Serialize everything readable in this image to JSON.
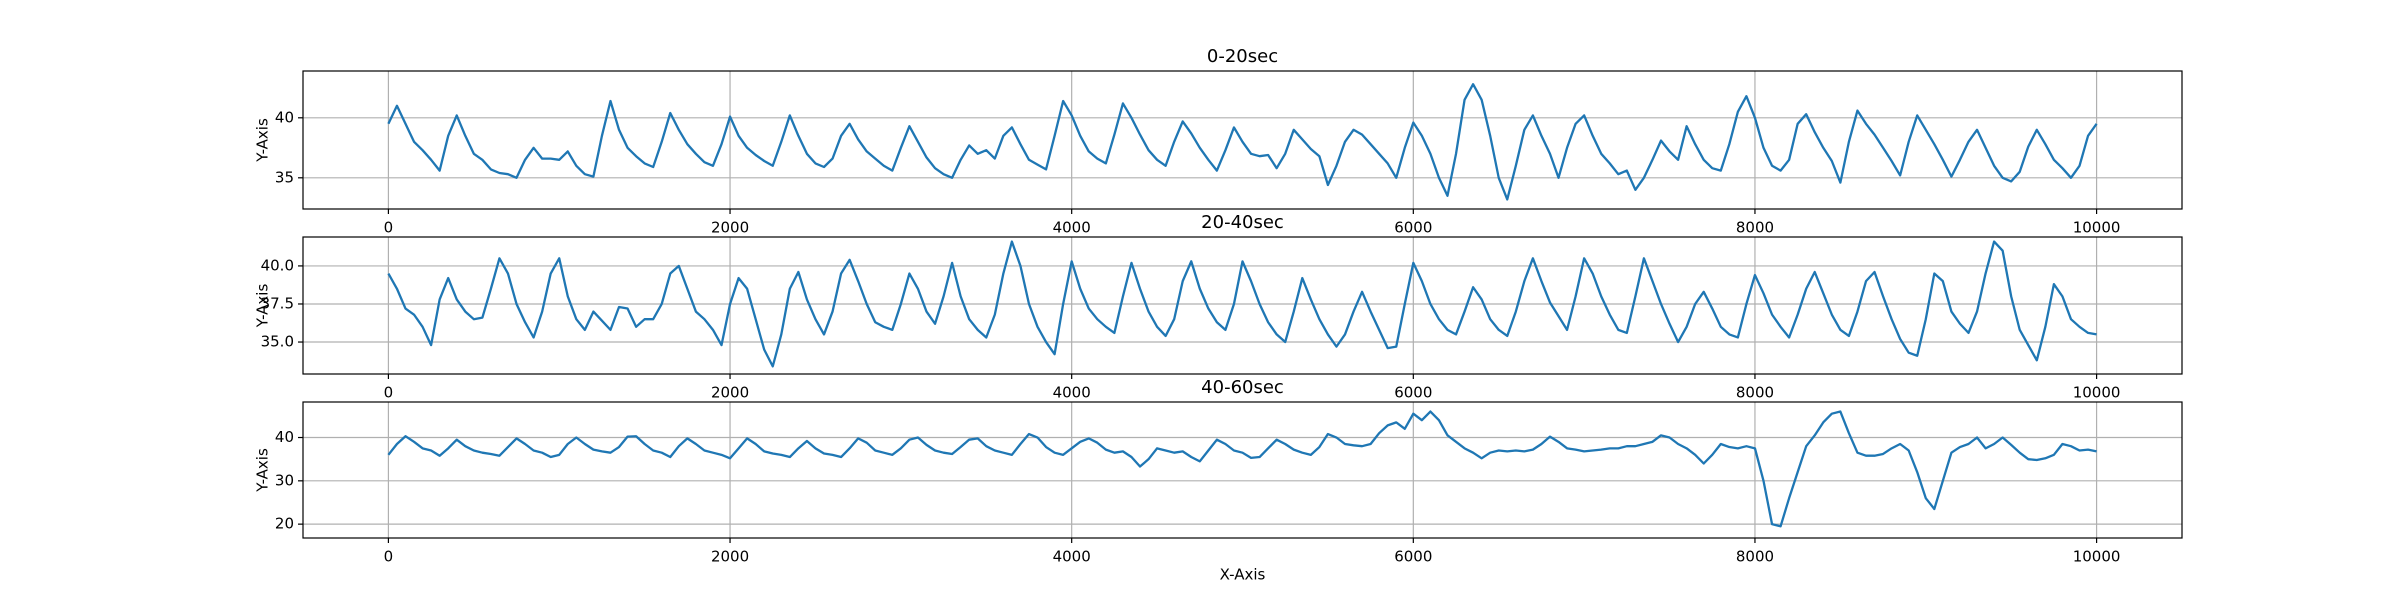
{
  "chart_data": [
    {
      "type": "line",
      "title": "0-20sec",
      "ylabel": "Y-Axis",
      "color": "#1f77b4",
      "grid": true,
      "xlim": [
        -500,
        10500
      ],
      "xticks": [
        0,
        2000,
        4000,
        6000,
        8000,
        10000
      ],
      "ylim": [
        32.4,
        43.9
      ],
      "yticks": [
        35,
        40
      ],
      "x": [
        0,
        50,
        100,
        150,
        200,
        250,
        300,
        350,
        400,
        450,
        500,
        550,
        600,
        650,
        700,
        750,
        800,
        850,
        900,
        950,
        1000,
        1050,
        1100,
        1150,
        1200,
        1250,
        1300,
        1350,
        1400,
        1450,
        1500,
        1550,
        1600,
        1650,
        1700,
        1750,
        1800,
        1850,
        1900,
        1950,
        2000,
        2050,
        2100,
        2150,
        2200,
        2250,
        2300,
        2350,
        2400,
        2450,
        2500,
        2550,
        2600,
        2650,
        2700,
        2750,
        2800,
        2850,
        2900,
        2950,
        3000,
        3050,
        3100,
        3150,
        3200,
        3250,
        3300,
        3350,
        3400,
        3450,
        3500,
        3550,
        3600,
        3650,
        3700,
        3750,
        3800,
        3850,
        3900,
        3950,
        4000,
        4050,
        4100,
        4150,
        4200,
        4250,
        4300,
        4350,
        4400,
        4450,
        4500,
        4550,
        4600,
        4650,
        4700,
        4750,
        4800,
        4850,
        4900,
        4950,
        5000,
        5050,
        5100,
        5150,
        5200,
        5250,
        5300,
        5350,
        5400,
        5450,
        5500,
        5550,
        5600,
        5650,
        5700,
        5750,
        5800,
        5850,
        5900,
        5950,
        6000,
        6050,
        6100,
        6150,
        6200,
        6250,
        6300,
        6350,
        6400,
        6450,
        6500,
        6550,
        6600,
        6650,
        6700,
        6750,
        6800,
        6850,
        6900,
        6950,
        7000,
        7050,
        7100,
        7150,
        7200,
        7250,
        7300,
        7350,
        7400,
        7450,
        7500,
        7550,
        7600,
        7650,
        7700,
        7750,
        7800,
        7850,
        7900,
        7950,
        8000,
        8050,
        8100,
        8150,
        8200,
        8250,
        8300,
        8350,
        8400,
        8450,
        8500,
        8550,
        8600,
        8650,
        8700,
        8750,
        8800,
        8850,
        8900,
        8950,
        9000,
        9050,
        9100,
        9150,
        9200,
        9250,
        9300,
        9350,
        9400,
        9450,
        9500,
        9550,
        9600,
        9650,
        9700,
        9750,
        9800,
        9850,
        9900,
        9950,
        10000
      ],
      "values": [
        39.5,
        41.0,
        39.5,
        38.0,
        37.3,
        36.5,
        35.6,
        38.5,
        40.2,
        38.5,
        37.0,
        36.5,
        35.7,
        35.4,
        35.3,
        35.0,
        36.5,
        37.5,
        36.6,
        36.6,
        36.5,
        37.2,
        36.0,
        35.3,
        35.1,
        38.5,
        41.4,
        39.0,
        37.5,
        36.8,
        36.2,
        35.9,
        38.0,
        40.4,
        39.0,
        37.8,
        37.0,
        36.3,
        36.0,
        37.8,
        40.1,
        38.5,
        37.5,
        36.9,
        36.4,
        36.0,
        38.0,
        40.2,
        38.5,
        37.0,
        36.2,
        35.9,
        36.6,
        38.5,
        39.5,
        38.2,
        37.2,
        36.6,
        36.0,
        35.6,
        37.5,
        39.3,
        38.0,
        36.7,
        35.8,
        35.3,
        35.0,
        36.5,
        37.7,
        37.0,
        37.3,
        36.6,
        38.5,
        39.2,
        37.8,
        36.5,
        36.1,
        35.7,
        38.5,
        41.4,
        40.2,
        38.5,
        37.2,
        36.6,
        36.2,
        38.6,
        41.2,
        40.0,
        38.6,
        37.3,
        36.5,
        36.0,
        38.0,
        39.7,
        38.7,
        37.5,
        36.5,
        35.6,
        37.3,
        39.2,
        38.0,
        37.0,
        36.8,
        36.9,
        35.8,
        37.0,
        39.0,
        38.2,
        37.4,
        36.8,
        34.4,
        36.0,
        38.0,
        39.0,
        38.6,
        37.8,
        37.0,
        36.2,
        35.0,
        37.5,
        39.6,
        38.5,
        37.0,
        35.0,
        33.5,
        37.0,
        41.5,
        42.8,
        41.5,
        38.5,
        35.0,
        33.2,
        36.0,
        39.0,
        40.2,
        38.5,
        37.0,
        35.0,
        37.5,
        39.5,
        40.2,
        38.5,
        37.0,
        36.2,
        35.3,
        35.6,
        34.0,
        35.0,
        36.5,
        38.1,
        37.2,
        36.5,
        39.3,
        37.8,
        36.5,
        35.8,
        35.6,
        37.8,
        40.5,
        41.8,
        40.0,
        37.5,
        36.0,
        35.6,
        36.5,
        39.5,
        40.3,
        38.8,
        37.5,
        36.4,
        34.6,
        38.0,
        40.6,
        39.5,
        38.6,
        37.5,
        36.4,
        35.2,
        38.0,
        40.2,
        39.0,
        37.8,
        36.5,
        35.1,
        36.5,
        38.0,
        39.0,
        37.5,
        36.0,
        35.0,
        34.7,
        35.5,
        37.6,
        39.0,
        37.8,
        36.5,
        35.8,
        35.0,
        36.0,
        38.5,
        39.5
      ]
    },
    {
      "type": "line",
      "title": "20-40sec",
      "ylabel": "Y-Axis",
      "color": "#1f77b4",
      "grid": true,
      "xlim": [
        -500,
        10500
      ],
      "xticks": [
        0,
        2000,
        4000,
        6000,
        8000,
        10000
      ],
      "ylim": [
        32.9,
        41.9
      ],
      "yticks": [
        {
          "value": 35,
          "label": "35.0"
        },
        {
          "value": 37.5,
          "label": "37.5"
        },
        {
          "value": 40,
          "label": "40.0"
        }
      ],
      "x": [
        0,
        50,
        100,
        150,
        200,
        250,
        300,
        350,
        400,
        450,
        500,
        550,
        600,
        650,
        700,
        750,
        800,
        850,
        900,
        950,
        1000,
        1050,
        1100,
        1150,
        1200,
        1250,
        1300,
        1350,
        1400,
        1450,
        1500,
        1550,
        1600,
        1650,
        1700,
        1750,
        1800,
        1850,
        1900,
        1950,
        2000,
        2050,
        2100,
        2150,
        2200,
        2250,
        2300,
        2350,
        2400,
        2450,
        2500,
        2550,
        2600,
        2650,
        2700,
        2750,
        2800,
        2850,
        2900,
        2950,
        3000,
        3050,
        3100,
        3150,
        3200,
        3250,
        3300,
        3350,
        3400,
        3450,
        3500,
        3550,
        3600,
        3650,
        3700,
        3750,
        3800,
        3850,
        3900,
        3950,
        4000,
        4050,
        4100,
        4150,
        4200,
        4250,
        4300,
        4350,
        4400,
        4450,
        4500,
        4550,
        4600,
        4650,
        4700,
        4750,
        4800,
        4850,
        4900,
        4950,
        5000,
        5050,
        5100,
        5150,
        5200,
        5250,
        5300,
        5350,
        5400,
        5450,
        5500,
        5550,
        5600,
        5650,
        5700,
        5750,
        5800,
        5850,
        5900,
        5950,
        6000,
        6050,
        6100,
        6150,
        6200,
        6250,
        6300,
        6350,
        6400,
        6450,
        6500,
        6550,
        6600,
        6650,
        6700,
        6750,
        6800,
        6850,
        6900,
        6950,
        7000,
        7050,
        7100,
        7150,
        7200,
        7250,
        7300,
        7350,
        7400,
        7450,
        7500,
        7550,
        7600,
        7650,
        7700,
        7750,
        7800,
        7850,
        7900,
        7950,
        8000,
        8050,
        8100,
        8150,
        8200,
        8250,
        8300,
        8350,
        8400,
        8450,
        8500,
        8550,
        8600,
        8650,
        8700,
        8750,
        8800,
        8850,
        8900,
        8950,
        9000,
        9050,
        9100,
        9150,
        9200,
        9250,
        9300,
        9350,
        9400,
        9450,
        9500,
        9550,
        9600,
        9650,
        9700,
        9750,
        9800,
        9850,
        9900,
        9950,
        10000
      ],
      "values": [
        39.5,
        38.5,
        37.2,
        36.8,
        36.0,
        34.8,
        37.8,
        39.2,
        37.8,
        37.0,
        36.5,
        36.6,
        38.5,
        40.5,
        39.5,
        37.5,
        36.3,
        35.3,
        37.0,
        39.5,
        40.5,
        38.0,
        36.5,
        35.8,
        37.0,
        36.4,
        35.8,
        37.3,
        37.2,
        36.0,
        36.5,
        36.5,
        37.5,
        39.5,
        40.0,
        38.5,
        37.0,
        36.5,
        35.8,
        34.8,
        37.5,
        39.2,
        38.5,
        36.5,
        34.5,
        33.4,
        35.5,
        38.5,
        39.6,
        37.8,
        36.5,
        35.5,
        37.0,
        39.5,
        40.4,
        39.0,
        37.5,
        36.3,
        36.0,
        35.8,
        37.5,
        39.5,
        38.5,
        37.0,
        36.2,
        38.0,
        40.2,
        38.0,
        36.5,
        35.8,
        35.3,
        36.8,
        39.5,
        41.6,
        40.0,
        37.5,
        36.0,
        35.0,
        34.2,
        37.5,
        40.3,
        38.5,
        37.2,
        36.5,
        36.0,
        35.6,
        38.0,
        40.2,
        38.5,
        37.0,
        36.0,
        35.4,
        36.5,
        39.0,
        40.3,
        38.5,
        37.2,
        36.3,
        35.8,
        37.5,
        40.3,
        39.0,
        37.5,
        36.3,
        35.5,
        35.0,
        37.0,
        39.2,
        37.8,
        36.5,
        35.5,
        34.7,
        35.5,
        37.0,
        38.3,
        37.0,
        35.8,
        34.6,
        34.7,
        37.5,
        40.2,
        39.0,
        37.5,
        36.5,
        35.8,
        35.5,
        37.0,
        38.6,
        37.8,
        36.5,
        35.8,
        35.4,
        37.0,
        39.0,
        40.5,
        39.0,
        37.6,
        36.7,
        35.8,
        38.0,
        40.5,
        39.5,
        38.0,
        36.8,
        35.8,
        35.6,
        38.0,
        40.5,
        39.0,
        37.5,
        36.2,
        35.0,
        36.0,
        37.5,
        38.3,
        37.2,
        36.0,
        35.5,
        35.3,
        37.5,
        39.4,
        38.2,
        36.8,
        36.0,
        35.3,
        36.8,
        38.5,
        39.6,
        38.2,
        36.8,
        35.8,
        35.4,
        37.0,
        39.0,
        39.6,
        38.0,
        36.5,
        35.2,
        34.3,
        34.1,
        36.5,
        39.5,
        39.0,
        37.0,
        36.2,
        35.6,
        37.0,
        39.5,
        41.6,
        41.0,
        38.0,
        35.8,
        34.8,
        33.8,
        36.0,
        38.8,
        38.0,
        36.5,
        36.0,
        35.6,
        35.5
      ]
    },
    {
      "type": "line",
      "title": "40-60sec",
      "ylabel": "Y-Axis",
      "xlabel": "X-Axis",
      "color": "#1f77b4",
      "grid": true,
      "xlim": [
        -500,
        10500
      ],
      "xticks": [
        0,
        2000,
        4000,
        6000,
        8000,
        10000
      ],
      "ylim": [
        16.8,
        48.2
      ],
      "yticks": [
        20,
        30,
        40
      ],
      "x": [
        0,
        50,
        100,
        150,
        200,
        250,
        300,
        350,
        400,
        450,
        500,
        550,
        600,
        650,
        700,
        750,
        800,
        850,
        900,
        950,
        1000,
        1050,
        1100,
        1150,
        1200,
        1250,
        1300,
        1350,
        1400,
        1450,
        1500,
        1550,
        1600,
        1650,
        1700,
        1750,
        1800,
        1850,
        1900,
        1950,
        2000,
        2050,
        2100,
        2150,
        2200,
        2250,
        2300,
        2350,
        2400,
        2450,
        2500,
        2550,
        2600,
        2650,
        2700,
        2750,
        2800,
        2850,
        2900,
        2950,
        3000,
        3050,
        3100,
        3150,
        3200,
        3250,
        3300,
        3350,
        3400,
        3450,
        3500,
        3550,
        3600,
        3650,
        3700,
        3750,
        3800,
        3850,
        3900,
        3950,
        4000,
        4050,
        4100,
        4150,
        4200,
        4250,
        4300,
        4350,
        4400,
        4450,
        4500,
        4550,
        4600,
        4650,
        4700,
        4750,
        4800,
        4850,
        4900,
        4950,
        5000,
        5050,
        5100,
        5150,
        5200,
        5250,
        5300,
        5350,
        5400,
        5450,
        5500,
        5550,
        5600,
        5650,
        5700,
        5750,
        5800,
        5850,
        5900,
        5950,
        6000,
        6050,
        6100,
        6150,
        6200,
        6250,
        6300,
        6350,
        6400,
        6450,
        6500,
        6550,
        6600,
        6650,
        6700,
        6750,
        6800,
        6850,
        6900,
        6950,
        7000,
        7050,
        7100,
        7150,
        7200,
        7250,
        7300,
        7350,
        7400,
        7450,
        7500,
        7550,
        7600,
        7650,
        7700,
        7750,
        7800,
        7850,
        7900,
        7950,
        8000,
        8050,
        8100,
        8150,
        8200,
        8250,
        8300,
        8350,
        8400,
        8450,
        8500,
        8550,
        8600,
        8650,
        8700,
        8750,
        8800,
        8850,
        8900,
        8950,
        9000,
        9050,
        9100,
        9150,
        9200,
        9250,
        9300,
        9350,
        9400,
        9450,
        9500,
        9550,
        9600,
        9650,
        9700,
        9750,
        9800,
        9850,
        9900,
        9950,
        10000
      ],
      "values": [
        36,
        38.5,
        40.3,
        39,
        37.5,
        37,
        35.8,
        37.5,
        39.5,
        38,
        37,
        36.5,
        36.2,
        35.8,
        37.8,
        39.8,
        38.5,
        37,
        36.5,
        35.5,
        36,
        38.5,
        40,
        38.5,
        37.2,
        36.8,
        36.5,
        37.8,
        40.2,
        40.3,
        38.5,
        37,
        36.5,
        35.5,
        38,
        39.8,
        38.5,
        37,
        36.5,
        36,
        35.2,
        37.5,
        39.8,
        38.5,
        36.8,
        36.3,
        36,
        35.5,
        37.5,
        39.2,
        37.5,
        36.3,
        36,
        35.5,
        37.5,
        39.8,
        38.8,
        37,
        36.5,
        36,
        37.5,
        39.5,
        40,
        38.3,
        37,
        36.5,
        36.2,
        37.8,
        39.5,
        39.8,
        38,
        37,
        36.5,
        36,
        38.5,
        40.8,
        40,
        37.8,
        36.5,
        36,
        37.5,
        39,
        39.8,
        38.8,
        37.2,
        36.5,
        36.8,
        35.5,
        33.3,
        35,
        37.5,
        37,
        36.5,
        36.8,
        35.5,
        34.5,
        37,
        39.5,
        38.5,
        37,
        36.5,
        35.3,
        35.5,
        37.5,
        39.5,
        38.5,
        37.2,
        36.5,
        36,
        37.8,
        40.8,
        40,
        38.5,
        38.2,
        38,
        38.5,
        41,
        42.8,
        43.5,
        42,
        45.5,
        44,
        46,
        44,
        40.5,
        39,
        37.5,
        36.5,
        35.2,
        36.5,
        37,
        36.8,
        37,
        36.8,
        37.2,
        38.5,
        40.2,
        39,
        37.5,
        37.2,
        36.8,
        37,
        37.2,
        37.5,
        37.5,
        38,
        38,
        38.5,
        39,
        40.5,
        40,
        38.5,
        37.5,
        36,
        34,
        36,
        38.5,
        37.8,
        37.5,
        38,
        37.5,
        30,
        20,
        19.5,
        26,
        32,
        38,
        40.5,
        43.5,
        45.5,
        46,
        41,
        36.5,
        35.8,
        35.8,
        36.2,
        37.5,
        38.5,
        37,
        32,
        26,
        23.5,
        30,
        36.5,
        37.8,
        38.5,
        40,
        37.5,
        38.5,
        40,
        38.3,
        36.5,
        35,
        34.8,
        35.2,
        36,
        38.5,
        38,
        37,
        37.2,
        36.8
      ]
    }
  ]
}
